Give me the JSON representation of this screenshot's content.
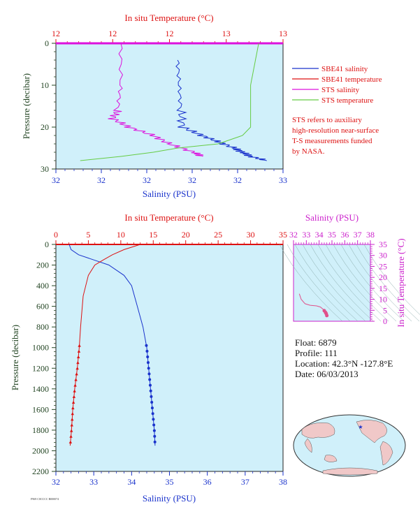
{
  "colors": {
    "salinity": "#1a33cc",
    "temperature": "#dd1111",
    "sts_salinity": "#dd11dd",
    "sts_temperature": "#66cc44",
    "plot_bg": "#d0f0fa",
    "ts_axis": "#cc22cc",
    "depth_axis": "#224422"
  },
  "top_panel": {
    "top_axis_title": "In situ Temperature (°C)",
    "top_ticks": [
      "12",
      "12",
      "12",
      "13",
      "13"
    ],
    "bottom_axis_title": "Salinity (PSU)",
    "bottom_ticks": [
      "32",
      "32",
      "32",
      "32",
      "32",
      "33"
    ],
    "left_axis_title": "Pressure (decibar)",
    "left_ticks": [
      "0",
      "10",
      "20",
      "30"
    ]
  },
  "legend": {
    "items": [
      "SBE41 salinity",
      "SBE41 temperature",
      "STS salinity",
      "STS temperature"
    ],
    "note_lines": [
      "STS refers to auxiliary",
      "high-resolution near-surface",
      "T-S measurements funded",
      "by NASA."
    ]
  },
  "bottom_panel": {
    "top_axis_title": "In situ Temperature (°C)",
    "top_ticks": [
      "0",
      "5",
      "10",
      "15",
      "20",
      "25",
      "30",
      "35"
    ],
    "bottom_axis_title": "Salinity (PSU)",
    "bottom_ticks": [
      "32",
      "33",
      "34",
      "35",
      "36",
      "37",
      "38"
    ],
    "left_axis_title": "Pressure (decibar)",
    "left_ticks": [
      "0",
      "200",
      "400",
      "600",
      "800",
      "1000",
      "1200",
      "1400",
      "1600",
      "1800",
      "2000",
      "2200"
    ]
  },
  "ts_panel": {
    "top_axis_title": "Salinity (PSU)",
    "top_ticks": [
      "32",
      "33",
      "34",
      "35",
      "36",
      "37",
      "38"
    ],
    "right_axis_title": "In situ Temperature (°C)",
    "right_ticks": [
      "0",
      "5",
      "10",
      "15",
      "20",
      "25",
      "30",
      "35"
    ]
  },
  "info": {
    "float": "Float: 6879",
    "profile": "Profile: 111",
    "location": "Location: 42.3°N -127.8°E",
    "date": "Date: 06/03/2013"
  },
  "footer_code": "F969 C0CCCC R000074",
  "chart_data": [
    {
      "type": "line",
      "panel": "top",
      "xlabel": "Salinity (PSU)",
      "x2label": "In situ Temperature (°C)",
      "ylabel": "Pressure (decibar)",
      "ylim": [
        0,
        30
      ],
      "series": [
        {
          "name": "SBE41 salinity",
          "x": [
            32.35,
            32.36,
            32.37,
            32.38,
            32.5,
            32.6,
            32.7,
            32.75,
            32.8,
            32.9
          ],
          "y": [
            4,
            10,
            16,
            20,
            22,
            23.5,
            25,
            26,
            27,
            28
          ]
        },
        {
          "name": "STS salinity",
          "x": [
            32.0,
            32.0,
            31.98,
            31.95,
            32.05,
            32.2,
            32.3,
            32.45,
            32.5
          ],
          "y": [
            0,
            10,
            16,
            18,
            20,
            22,
            24,
            26,
            27
          ]
        },
        {
          "name": "STS temperature",
          "x": [
            31.75,
            32.0,
            32.2,
            32.35,
            32.6,
            32.75,
            32.8,
            32.8,
            32.85
          ],
          "y": [
            28,
            27,
            26,
            25,
            24,
            22,
            20,
            10,
            0
          ]
        }
      ]
    },
    {
      "type": "line",
      "panel": "profile",
      "xlabel": "Salinity (PSU)",
      "x2label": "In situ Temperature (°C)",
      "ylabel": "Pressure (decibar)",
      "xlim": [
        32,
        38
      ],
      "x2lim": [
        0,
        35
      ],
      "ylim": [
        0,
        2200
      ],
      "series": [
        {
          "name": "Salinity",
          "x": [
            32.35,
            32.4,
            32.6,
            33.0,
            33.4,
            33.8,
            34.0,
            34.15,
            34.3,
            34.4,
            34.45,
            34.5,
            34.55,
            34.6,
            34.62
          ],
          "y": [
            0,
            50,
            100,
            150,
            200,
            300,
            400,
            600,
            800,
            1000,
            1200,
            1400,
            1600,
            1800,
            1950
          ]
        },
        {
          "name": "Temperature",
          "x": [
            13.0,
            12.0,
            10.5,
            8.7,
            7.3,
            6.0,
            5.0,
            4.2,
            3.8,
            3.6,
            3.3,
            2.9,
            2.6,
            2.4,
            2.2
          ],
          "y": [
            0,
            20,
            50,
            100,
            150,
            200,
            300,
            500,
            800,
            1000,
            1200,
            1400,
            1600,
            1800,
            1950
          ]
        }
      ]
    },
    {
      "type": "scatter",
      "panel": "ts",
      "xlabel": "Salinity (PSU)",
      "ylabel": "In situ Temperature (°C)",
      "xlim": [
        32,
        38
      ],
      "ylim": [
        0,
        35
      ],
      "series": [
        {
          "name": "T-S",
          "x": [
            32.45,
            32.6,
            32.9,
            33.3,
            33.8,
            34.1,
            34.3,
            34.4,
            34.5,
            34.55,
            34.6
          ],
          "y": [
            12.5,
            10,
            8,
            7.3,
            7,
            6.5,
            5.5,
            4.8,
            4,
            3.5,
            2.6
          ]
        }
      ]
    }
  ]
}
